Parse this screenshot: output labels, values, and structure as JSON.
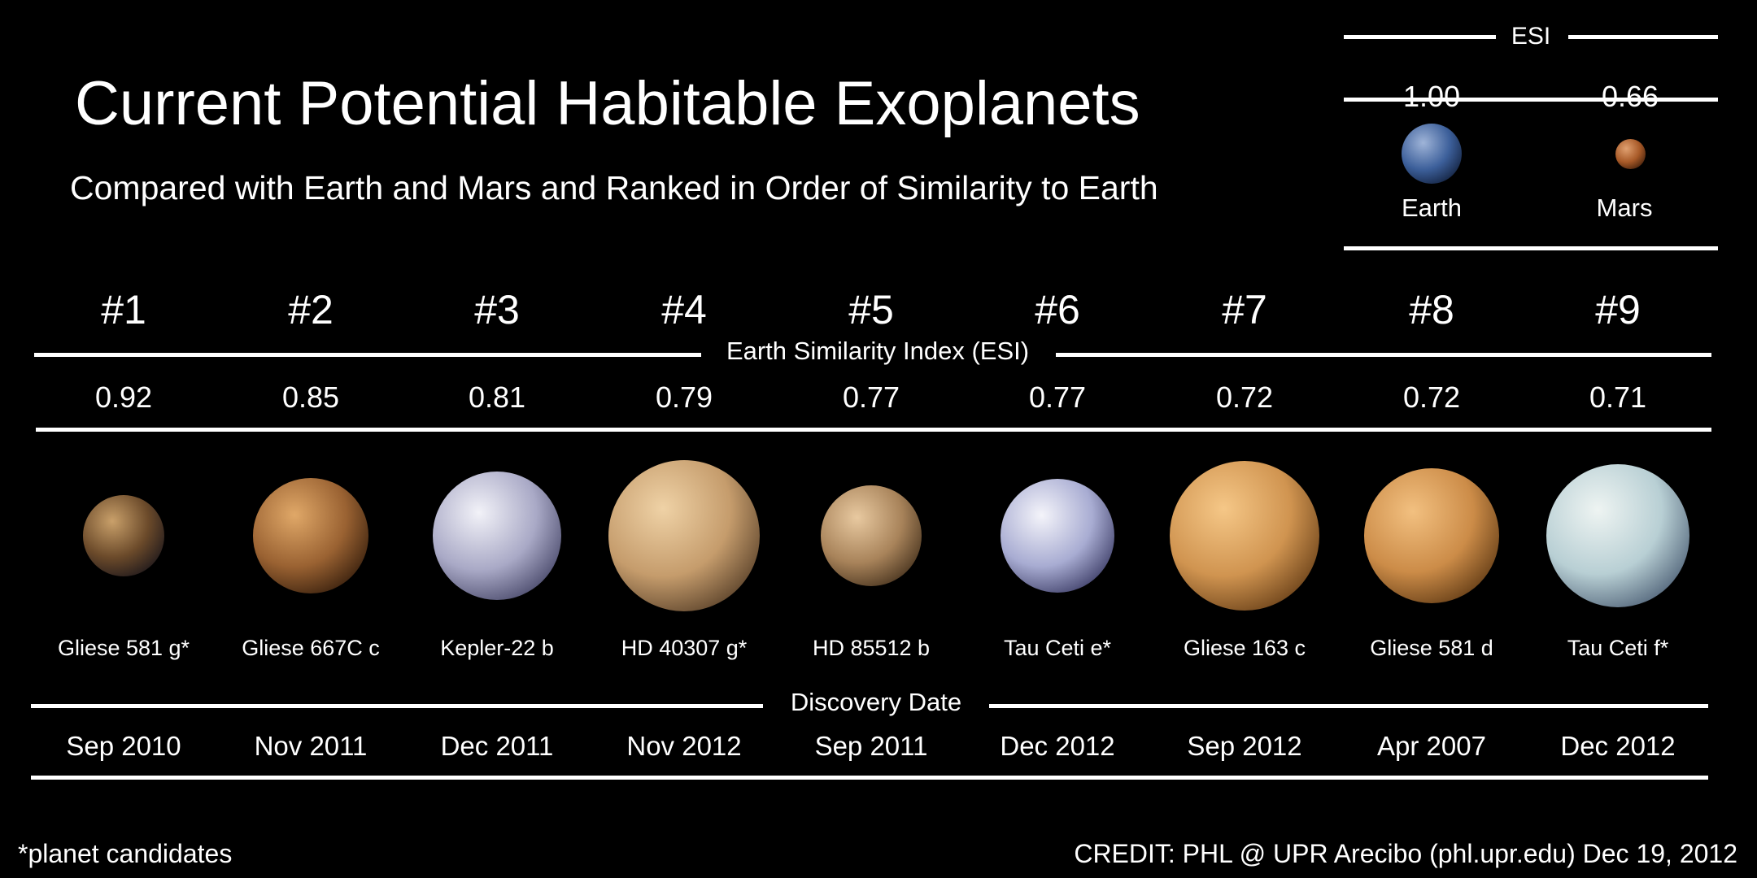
{
  "title": "Current Potential Habitable Exoplanets",
  "subtitle": "Compared with Earth and Mars and Ranked in Order of Similarity to Earth",
  "reference": {
    "header": "ESI",
    "bodies": [
      {
        "name": "Earth",
        "esi": "1.00",
        "colors": [
          "#9fb4d8",
          "#3c5f9a",
          "#0e1a33"
        ]
      },
      {
        "name": "Mars",
        "esi": "0.66",
        "colors": [
          "#e0a070",
          "#a85a28",
          "#3a1a08"
        ]
      }
    ]
  },
  "esi_label": "Earth Similarity Index (ESI)",
  "discovery_label": "Discovery Date",
  "planets": [
    {
      "rank": "#1",
      "esi": "0.92",
      "name": "Gliese 581 g*",
      "date": "Sep 2010",
      "colors": [
        "#c9a06a",
        "#6b4a2a",
        "#15121a"
      ]
    },
    {
      "rank": "#2",
      "esi": "0.85",
      "name": "Gliese 667C c",
      "date": "Nov 2011",
      "colors": [
        "#e0a868",
        "#9a6232",
        "#2a1608"
      ]
    },
    {
      "rank": "#3",
      "esi": "0.81",
      "name": "Kepler-22 b",
      "date": "Dec 2011",
      "colors": [
        "#f2f2f8",
        "#a9a9c6",
        "#3a3a5c"
      ]
    },
    {
      "rank": "#4",
      "esi": "0.79",
      "name": "HD 40307 g*",
      "date": "Nov 2012",
      "colors": [
        "#efd2a6",
        "#c59c6c",
        "#4a3420"
      ]
    },
    {
      "rank": "#5",
      "esi": "0.77",
      "name": "HD 85512 b",
      "date": "Sep 2011",
      "colors": [
        "#e8c9a0",
        "#a8835a",
        "#3a2816"
      ]
    },
    {
      "rank": "#6",
      "esi": "0.77",
      "name": "Tau Ceti e*",
      "date": "Dec 2012",
      "colors": [
        "#f4f4fa",
        "#a8acd2",
        "#2e2e58"
      ]
    },
    {
      "rank": "#7",
      "esi": "0.72",
      "name": "Gliese 163 c",
      "date": "Sep 2012",
      "colors": [
        "#f5c787",
        "#d09450",
        "#5a3410"
      ]
    },
    {
      "rank": "#8",
      "esi": "0.72",
      "name": "Gliese 581 d",
      "date": "Apr 2007",
      "colors": [
        "#f2c080",
        "#cc8c48",
        "#53300e"
      ]
    },
    {
      "rank": "#9",
      "esi": "0.71",
      "name": "Tau Ceti f*",
      "date": "Dec 2012",
      "colors": [
        "#eef4f2",
        "#b8cfd4",
        "#40526a"
      ]
    }
  ],
  "footer": {
    "note": "*planet candidates",
    "credit": "CREDIT: PHL @ UPR Arecibo (phl.upr.edu) Dec 19, 2012"
  }
}
